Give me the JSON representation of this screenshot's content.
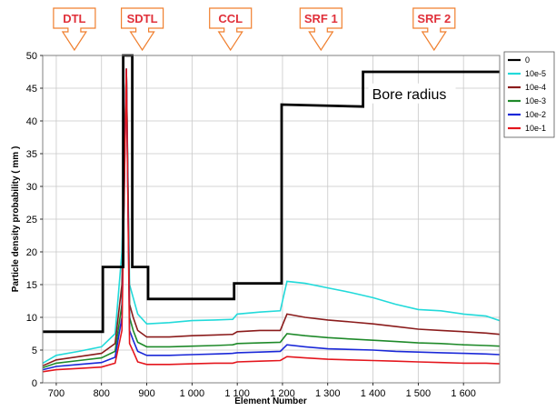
{
  "chart_data": {
    "type": "line",
    "title": "",
    "xlabel": "Element Number",
    "ylabel": "Particle density probability ( mm )",
    "xlim": [
      670,
      1680
    ],
    "ylim": [
      0,
      50
    ],
    "x_ticks": [
      700,
      800,
      900,
      1000,
      1100,
      1200,
      1300,
      1400,
      1500,
      1600
    ],
    "x_tick_labels": [
      "700",
      "800",
      "900",
      "1 000",
      "1 100",
      "1 200",
      "1 300",
      "1 400",
      "1 500",
      "1 600"
    ],
    "y_ticks": [
      0,
      5,
      10,
      15,
      20,
      25,
      30,
      35,
      40,
      45,
      50
    ],
    "y_tick_labels": [
      "0",
      "5",
      "10",
      "15",
      "20",
      "25",
      "30",
      "35",
      "40",
      "45",
      "50"
    ],
    "grid": true,
    "legend_position": "right",
    "sections": [
      {
        "label": "DTL",
        "x": 740
      },
      {
        "label": "SDTL",
        "x": 890
      },
      {
        "label": "CCL",
        "x": 1085
      },
      {
        "label": "SRF 1",
        "x": 1285
      },
      {
        "label": "SRF 2",
        "x": 1535
      }
    ],
    "annotation": {
      "text": "Bore radius",
      "x": 1390,
      "y": 44.2
    },
    "bore_radius": {
      "name": "0",
      "color": "#000000",
      "x": [
        670,
        803,
        803,
        848,
        848,
        868,
        868,
        903,
        903,
        1093,
        1093,
        1198,
        1198,
        1378,
        1378,
        1680
      ],
      "y": [
        7.8,
        7.8,
        17.7,
        17.7,
        50,
        50,
        17.7,
        17.7,
        12.8,
        12.8,
        15.2,
        15.2,
        42.5,
        42.2,
        47.5,
        47.5
      ]
    },
    "series": [
      {
        "name": "10e-5",
        "color": "#22dada",
        "x": [
          670,
          700,
          750,
          800,
          830,
          845,
          855,
          862,
          870,
          880,
          900,
          950,
          1000,
          1050,
          1090,
          1100,
          1150,
          1195,
          1210,
          1250,
          1300,
          1350,
          1400,
          1450,
          1500,
          1550,
          1600,
          1650,
          1680
        ],
        "y": [
          3.0,
          4.2,
          4.8,
          5.5,
          7.5,
          20,
          48,
          15,
          13,
          10.5,
          9.0,
          9.2,
          9.5,
          9.6,
          9.7,
          10.5,
          10.8,
          11.0,
          15.5,
          15.2,
          14.5,
          13.8,
          13.0,
          12.0,
          11.2,
          11.0,
          10.5,
          10.2,
          9.5
        ]
      },
      {
        "name": "10e-4",
        "color": "#8b1c1c",
        "x": [
          670,
          700,
          750,
          800,
          830,
          845,
          855,
          862,
          870,
          880,
          900,
          950,
          1000,
          1050,
          1090,
          1100,
          1150,
          1195,
          1210,
          1250,
          1300,
          1350,
          1400,
          1450,
          1500,
          1550,
          1600,
          1650,
          1680
        ],
        "y": [
          2.6,
          3.5,
          4.0,
          4.5,
          6.0,
          15,
          48,
          12,
          10,
          8.0,
          7.0,
          7.0,
          7.2,
          7.3,
          7.4,
          7.8,
          8.0,
          8.0,
          10.5,
          10.0,
          9.6,
          9.3,
          9.0,
          8.6,
          8.2,
          8.0,
          7.8,
          7.6,
          7.4
        ]
      },
      {
        "name": "10e-3",
        "color": "#1f8a2a",
        "x": [
          670,
          700,
          750,
          800,
          830,
          845,
          855,
          862,
          870,
          880,
          900,
          950,
          1000,
          1050,
          1090,
          1100,
          1150,
          1195,
          1210,
          1250,
          1300,
          1350,
          1400,
          1450,
          1500,
          1550,
          1600,
          1650,
          1680
        ],
        "y": [
          2.3,
          3.0,
          3.4,
          3.8,
          4.8,
          12,
          48,
          10,
          8.0,
          6.2,
          5.5,
          5.5,
          5.6,
          5.7,
          5.8,
          6.0,
          6.1,
          6.2,
          7.5,
          7.2,
          6.9,
          6.7,
          6.5,
          6.3,
          6.1,
          6.0,
          5.8,
          5.7,
          5.6
        ]
      },
      {
        "name": "10e-2",
        "color": "#1a28d8",
        "x": [
          670,
          700,
          750,
          800,
          830,
          845,
          855,
          862,
          870,
          880,
          900,
          950,
          1000,
          1050,
          1090,
          1100,
          1150,
          1195,
          1210,
          1250,
          1300,
          1350,
          1400,
          1450,
          1500,
          1550,
          1600,
          1650,
          1680
        ],
        "y": [
          2.0,
          2.5,
          2.8,
          3.1,
          3.9,
          10,
          48,
          8.0,
          6.5,
          4.8,
          4.2,
          4.2,
          4.3,
          4.4,
          4.5,
          4.6,
          4.7,
          4.8,
          5.8,
          5.5,
          5.2,
          5.1,
          5.0,
          4.8,
          4.7,
          4.6,
          4.5,
          4.4,
          4.3
        ]
      },
      {
        "name": "10e-1",
        "color": "#e4161d",
        "x": [
          670,
          700,
          750,
          800,
          830,
          845,
          855,
          862,
          870,
          880,
          900,
          950,
          1000,
          1050,
          1090,
          1100,
          1150,
          1195,
          1210,
          1250,
          1300,
          1350,
          1400,
          1450,
          1500,
          1550,
          1600,
          1650,
          1680
        ],
        "y": [
          1.7,
          2.0,
          2.2,
          2.4,
          3.0,
          8.0,
          48,
          6.0,
          4.8,
          3.2,
          2.8,
          2.8,
          2.9,
          3.0,
          3.0,
          3.2,
          3.3,
          3.4,
          4.0,
          3.8,
          3.6,
          3.5,
          3.4,
          3.3,
          3.2,
          3.1,
          3.0,
          3.0,
          2.9
        ]
      }
    ]
  }
}
